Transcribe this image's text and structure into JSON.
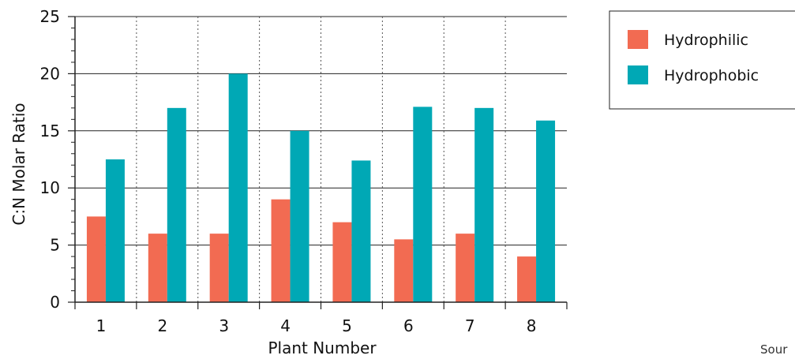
{
  "chart_data": {
    "type": "bar",
    "title": "",
    "xlabel": "Plant Number",
    "ylabel": "C:N Molar Ratio",
    "categories": [
      "1",
      "2",
      "3",
      "4",
      "5",
      "6",
      "7",
      "8"
    ],
    "series": [
      {
        "name": "Hydrophilic",
        "color": "#f26b52",
        "values": [
          7.5,
          6,
          6,
          9,
          7,
          5.5,
          6,
          4
        ]
      },
      {
        "name": "Hydrophobic",
        "color": "#00a8b5",
        "values": [
          12.5,
          17,
          20,
          15,
          12.4,
          17.1,
          17,
          15.9
        ]
      }
    ],
    "ylim": [
      0,
      25
    ],
    "yticks": [
      0,
      5,
      10,
      15,
      20,
      25
    ],
    "grid": {
      "horizontal": true,
      "vertical_dotted_separators": true
    },
    "legend_position": "top-right"
  },
  "source_label": "Sour"
}
